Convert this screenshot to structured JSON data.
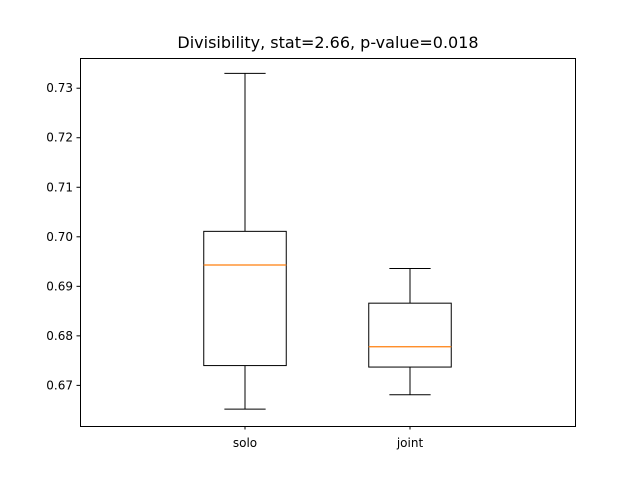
{
  "chart_data": {
    "type": "box",
    "title": "Divisibility, stat=2.66, p-value=0.018",
    "xlabel": "",
    "ylabel": "",
    "ylim": [
      0.6618,
      0.7361
    ],
    "yticks": [
      0.67,
      0.68,
      0.69,
      0.7,
      0.71,
      0.72,
      0.73
    ],
    "ytick_labels": [
      "0.67",
      "0.68",
      "0.69",
      "0.70",
      "0.71",
      "0.72",
      "0.73"
    ],
    "categories": [
      "solo",
      "joint"
    ],
    "boxes": [
      {
        "category": "solo",
        "whisker_low": 0.6652,
        "q1": 0.674,
        "median": 0.6943,
        "q3": 0.7011,
        "whisker_high": 0.733
      },
      {
        "category": "joint",
        "whisker_low": 0.6681,
        "q1": 0.6737,
        "median": 0.6778,
        "q3": 0.6866,
        "whisker_high": 0.6936
      }
    ],
    "grid": false,
    "colors": {
      "box": "#000000",
      "median": "#ff7f0e"
    }
  }
}
